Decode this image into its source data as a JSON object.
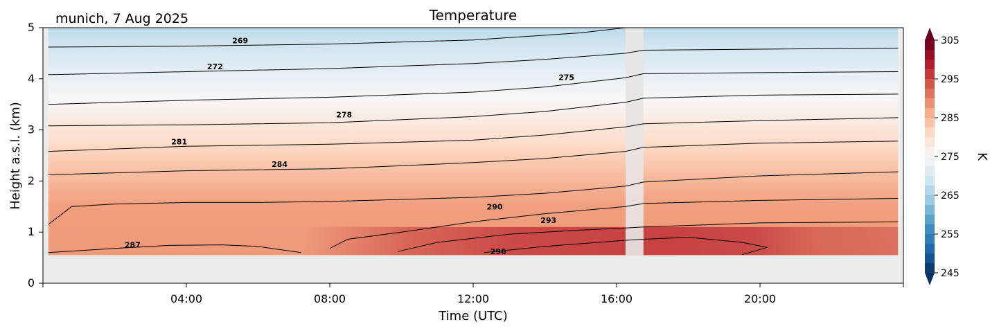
{
  "location_label": "munich, 7 Aug 2025",
  "chart_data": {
    "type": "heatmap",
    "title": "Temperature",
    "xlabel": "Time (UTC)",
    "ylabel": "Height a.s.l. (km)",
    "x_unit": "hours UTC",
    "xlim": [
      0,
      24
    ],
    "ylim": [
      0,
      5
    ],
    "x_ticks": [
      {
        "value": 4,
        "label": "04:00"
      },
      {
        "value": 8,
        "label": "08:00"
      },
      {
        "value": 12,
        "label": "12:00"
      },
      {
        "value": 16,
        "label": "16:00"
      },
      {
        "value": 20,
        "label": "20:00"
      }
    ],
    "y_ticks": [
      {
        "value": 0,
        "label": "0"
      },
      {
        "value": 1,
        "label": "1"
      },
      {
        "value": 2,
        "label": "2"
      },
      {
        "value": 3,
        "label": "3"
      },
      {
        "value": 4,
        "label": "4"
      },
      {
        "value": 5,
        "label": "5"
      }
    ],
    "data_range": {
      "time_start": 0.15,
      "time_end": 23.85,
      "height_min": 0.55,
      "height_max": 5.0
    },
    "missing_data": [
      {
        "time_start": 16.25,
        "time_end": 16.75
      }
    ],
    "colorbar": {
      "label": "K",
      "min": 245,
      "max": 305,
      "step": 2.5,
      "extend": "both",
      "colormap": "RdBu_r",
      "ticks": [
        {
          "value": 305,
          "label": "305"
        },
        {
          "value": 295,
          "label": "295"
        },
        {
          "value": 285,
          "label": "285"
        },
        {
          "value": 275,
          "label": "275"
        },
        {
          "value": 265,
          "label": "265"
        },
        {
          "value": 255,
          "label": "255"
        },
        {
          "value": 245,
          "label": "245"
        }
      ]
    },
    "isotherms": [
      {
        "level": 269,
        "label": "269",
        "label_x": 5.5,
        "label_y": 4.75,
        "points": [
          [
            0.15,
            4.62
          ],
          [
            4,
            4.64
          ],
          [
            8,
            4.68
          ],
          [
            12,
            4.76
          ],
          [
            15,
            4.9
          ],
          [
            16.25,
            5.0
          ],
          [
            16.75,
            5.0
          ],
          [
            23.85,
            5.0
          ]
        ]
      },
      {
        "level": 272,
        "label": "272",
        "label_x": 4.8,
        "label_y": 4.24,
        "points": [
          [
            0.15,
            4.08
          ],
          [
            4,
            4.14
          ],
          [
            8,
            4.2
          ],
          [
            12,
            4.3
          ],
          [
            14,
            4.38
          ],
          [
            16.25,
            4.5
          ],
          [
            16.75,
            4.56
          ],
          [
            20,
            4.58
          ],
          [
            23.85,
            4.6
          ]
        ]
      },
      {
        "level": 275,
        "label": "275",
        "label_x": 14.6,
        "label_y": 4.03,
        "points": [
          [
            0.15,
            3.5
          ],
          [
            4,
            3.58
          ],
          [
            8,
            3.64
          ],
          [
            12,
            3.74
          ],
          [
            14,
            3.84
          ],
          [
            16.25,
            4.02
          ],
          [
            16.75,
            4.1
          ],
          [
            20,
            4.12
          ],
          [
            23.85,
            4.14
          ]
        ]
      },
      {
        "level": 278,
        "label": "278",
        "label_x": 8.4,
        "label_y": 3.3,
        "points": [
          [
            0.15,
            3.08
          ],
          [
            4,
            3.1
          ],
          [
            8,
            3.14
          ],
          [
            12,
            3.26
          ],
          [
            14,
            3.36
          ],
          [
            16.25,
            3.54
          ],
          [
            16.75,
            3.62
          ],
          [
            20,
            3.68
          ],
          [
            23.85,
            3.7
          ]
        ]
      },
      {
        "level": 281,
        "label": "281",
        "label_x": 3.8,
        "label_y": 2.77,
        "points": [
          [
            0.15,
            2.58
          ],
          [
            4,
            2.68
          ],
          [
            8,
            2.72
          ],
          [
            12,
            2.8
          ],
          [
            14,
            2.9
          ],
          [
            16.25,
            3.06
          ],
          [
            16.75,
            3.12
          ],
          [
            20,
            3.18
          ],
          [
            23.85,
            3.24
          ]
        ]
      },
      {
        "level": 284,
        "label": "284",
        "label_x": 6.6,
        "label_y": 2.33,
        "points": [
          [
            0.15,
            2.12
          ],
          [
            4,
            2.2
          ],
          [
            8,
            2.24
          ],
          [
            12,
            2.36
          ],
          [
            14,
            2.44
          ],
          [
            16.25,
            2.58
          ],
          [
            16.75,
            2.66
          ],
          [
            20,
            2.74
          ],
          [
            23.85,
            2.78
          ]
        ]
      },
      {
        "level": 287,
        "label": "287",
        "label_x": 2.5,
        "label_y": 0.75,
        "points": [
          [
            0.15,
            0.6
          ],
          [
            2,
            0.68
          ],
          [
            3.5,
            0.74
          ],
          [
            5,
            0.75
          ],
          [
            6,
            0.72
          ],
          [
            7.2,
            0.6
          ]
        ]
      },
      {
        "level": 287.5,
        "label": "",
        "points": [
          [
            0.15,
            1.15
          ],
          [
            0.8,
            1.5
          ],
          [
            2,
            1.55
          ],
          [
            4,
            1.58
          ],
          [
            6,
            1.58
          ],
          [
            8,
            1.6
          ],
          [
            10,
            1.64
          ],
          [
            12,
            1.68
          ],
          [
            14,
            1.76
          ],
          [
            16.25,
            1.9
          ],
          [
            16.75,
            1.98
          ],
          [
            20,
            2.1
          ],
          [
            23.85,
            2.18
          ]
        ]
      },
      {
        "level": 290,
        "label": "290",
        "label_x": 12.6,
        "label_y": 1.5,
        "points": [
          [
            8,
            0.68
          ],
          [
            8.5,
            0.86
          ],
          [
            10,
            1.0
          ],
          [
            12,
            1.2
          ],
          [
            14,
            1.36
          ],
          [
            16.25,
            1.5
          ],
          [
            16.75,
            1.56
          ],
          [
            20,
            1.62
          ],
          [
            23.85,
            1.66
          ]
        ]
      },
      {
        "level": 293,
        "label": "293",
        "label_x": 14.1,
        "label_y": 1.23,
        "points": [
          [
            9.9,
            0.62
          ],
          [
            11,
            0.8
          ],
          [
            13,
            0.96
          ],
          [
            15,
            1.04
          ],
          [
            16.25,
            1.08
          ],
          [
            16.75,
            1.1
          ],
          [
            20,
            1.18
          ],
          [
            23.85,
            1.2
          ]
        ]
      },
      {
        "level": 296,
        "label": "296",
        "label_x": 12.7,
        "label_y": 0.62,
        "points": [
          [
            12.3,
            0.6
          ],
          [
            14,
            0.72
          ],
          [
            16.25,
            0.84
          ],
          [
            16.75,
            0.86
          ],
          [
            18,
            0.9
          ],
          [
            19.5,
            0.8
          ],
          [
            20.2,
            0.7
          ],
          [
            19.5,
            0.56
          ]
        ]
      }
    ]
  }
}
